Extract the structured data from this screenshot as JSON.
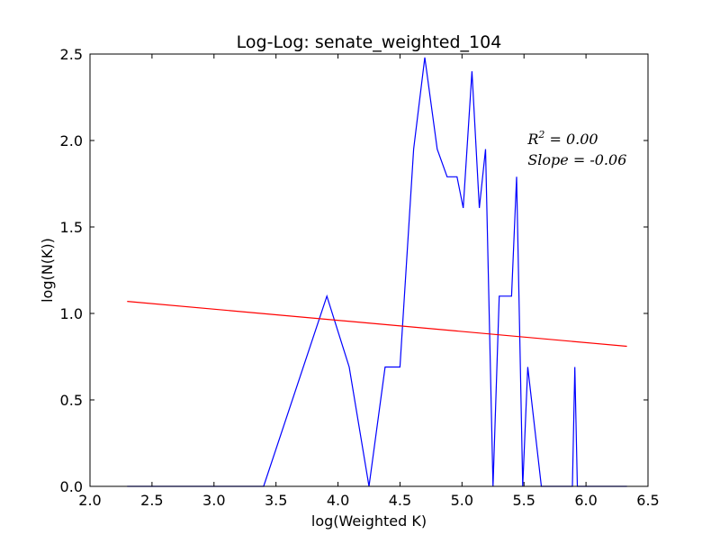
{
  "chart_data": {
    "type": "line",
    "title": "Log-Log: senate_weighted_104",
    "xlabel": "log(Weighted K)",
    "ylabel": "log(N(K))",
    "xlim": [
      2.0,
      6.5
    ],
    "ylim": [
      0.0,
      2.5
    ],
    "x_ticks": [
      2.0,
      2.5,
      3.0,
      3.5,
      4.0,
      4.5,
      5.0,
      5.5,
      6.0,
      6.5
    ],
    "y_ticks": [
      0.0,
      0.5,
      1.0,
      1.5,
      2.0,
      2.5
    ],
    "x_tick_labels": [
      "2.0",
      "2.5",
      "3.0",
      "3.5",
      "4.0",
      "4.5",
      "5.0",
      "5.5",
      "6.0",
      "6.5"
    ],
    "y_tick_labels": [
      "0.0",
      "0.5",
      "1.0",
      "1.5",
      "2.0",
      "2.5"
    ],
    "grid": false,
    "series": [
      {
        "color": "#0000ff",
        "x": [
          2.3,
          3.4,
          3.91,
          4.09,
          4.25,
          4.38,
          4.5,
          4.61,
          4.7,
          4.8,
          4.88,
          4.96,
          5.01,
          5.08,
          5.14,
          5.19,
          5.25,
          5.3,
          5.4,
          5.44,
          5.49,
          5.53,
          5.64,
          5.89,
          5.91,
          5.93,
          6.33
        ],
        "values": [
          0.0,
          0.0,
          1.1,
          0.69,
          0.0,
          0.69,
          0.69,
          1.95,
          2.48,
          1.95,
          1.79,
          1.79,
          1.61,
          2.4,
          1.61,
          1.95,
          0.0,
          1.1,
          1.1,
          1.79,
          0.0,
          0.69,
          0.0,
          0.0,
          0.69,
          0.0,
          0.0
        ]
      },
      {
        "color": "#ff0000",
        "x": [
          2.3,
          6.33
        ],
        "values": [
          1.07,
          0.81
        ]
      }
    ],
    "annotations": [
      {
        "x": 5.53,
        "y": 1.98,
        "text": "R^2 = 0.00",
        "base": "R",
        "sup": "2",
        "rest": " = 0.00"
      },
      {
        "x": 5.53,
        "y": 1.86,
        "text": "Slope = -0.06"
      }
    ]
  }
}
